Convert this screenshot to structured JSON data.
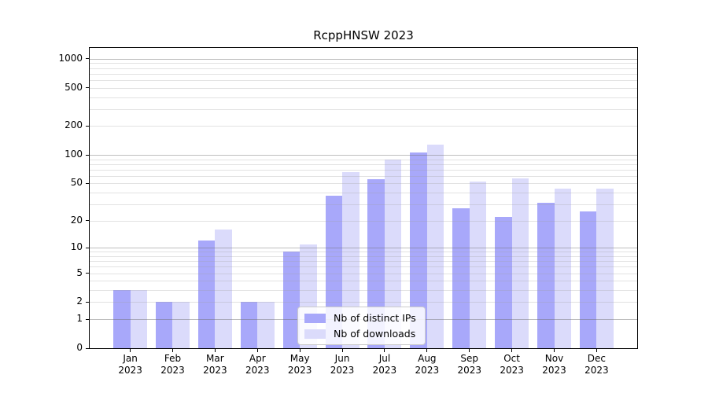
{
  "chart_data": {
    "type": "bar",
    "title": "RcppHNSW 2023",
    "months": [
      "Jan",
      "Feb",
      "Mar",
      "Apr",
      "May",
      "Jun",
      "Jul",
      "Aug",
      "Sep",
      "Oct",
      "Nov",
      "Dec"
    ],
    "year": "2023",
    "series": [
      {
        "name": "Nb of distinct IPs",
        "color": "#a8a8fa",
        "values": [
          3,
          2,
          12,
          2,
          9,
          37,
          55,
          105,
          27,
          22,
          31,
          25
        ]
      },
      {
        "name": "Nb of downloads",
        "color": "#dbdbfb",
        "values": [
          3,
          2,
          16,
          2,
          11,
          66,
          90,
          128,
          52,
          57,
          44,
          44
        ]
      }
    ],
    "y_axis": {
      "scale": "log1p",
      "ticks": [
        0,
        1,
        2,
        5,
        10,
        20,
        50,
        100,
        200,
        500,
        1000
      ],
      "range": [
        0,
        1320
      ]
    },
    "grid": {
      "show": true,
      "major_at": [
        1,
        10,
        100,
        1000
      ],
      "major_color": "#bcbcbc",
      "minor_color": "#e4e4e4"
    },
    "legend": {
      "position": "lower-center-left",
      "entries": [
        "Nb of distinct IPs",
        "Nb of downloads"
      ]
    }
  }
}
